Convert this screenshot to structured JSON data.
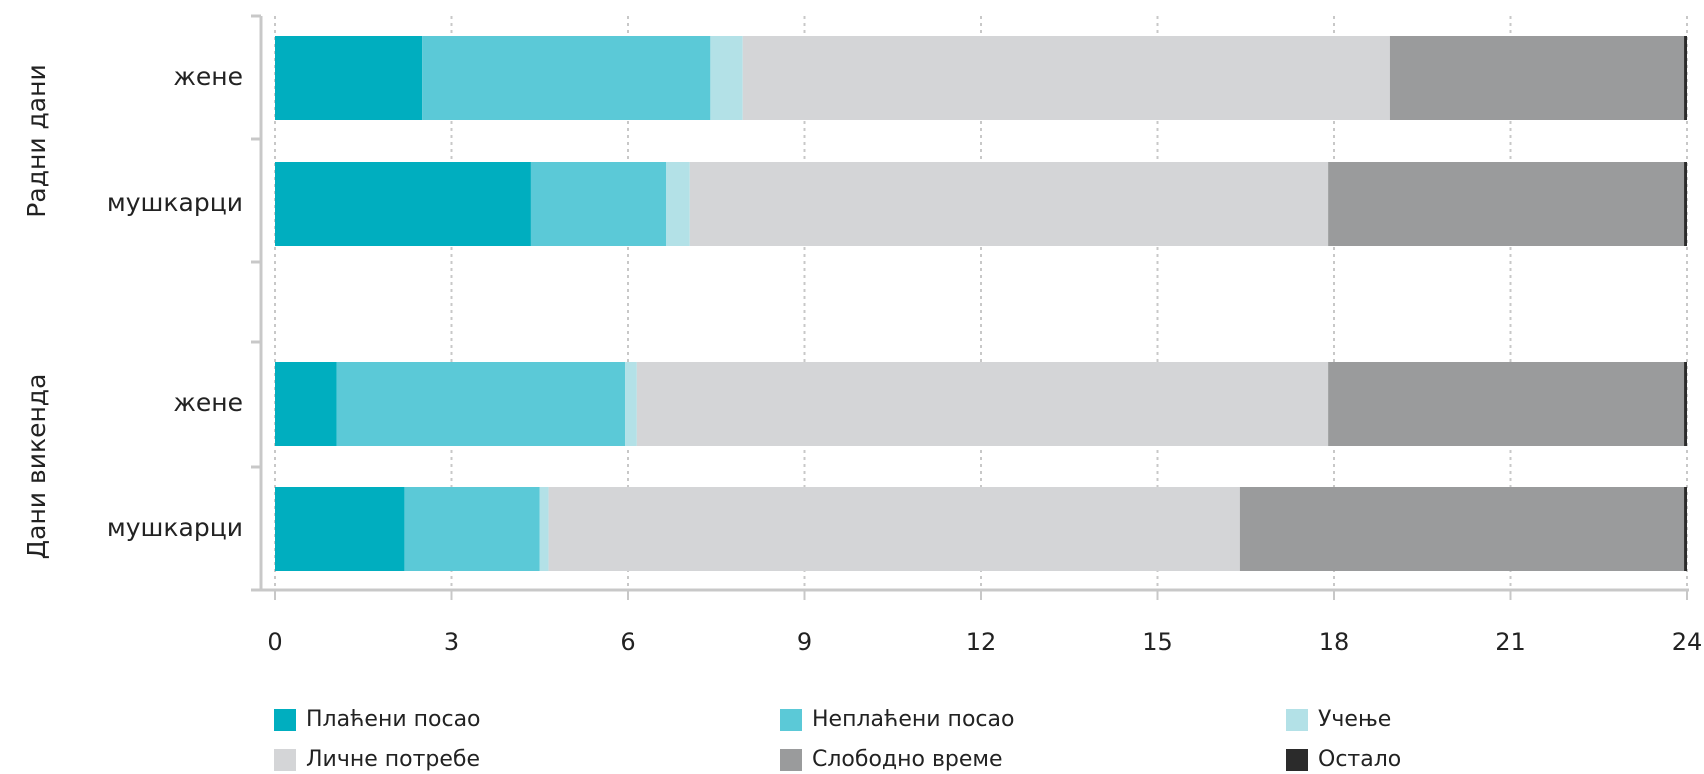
{
  "chart_data": {
    "type": "stacked-bar-horizontal",
    "groups": [
      "Радни дани",
      "Дани викенда"
    ],
    "categories": [
      "жене",
      "мушкарци",
      "жене",
      "мушкарци"
    ],
    "series": [
      {
        "name": "Плаћени посао",
        "color": "#00aebf",
        "values": [
          2.5,
          4.35,
          1.05,
          2.2
        ]
      },
      {
        "name": "Неплаћени посао",
        "color": "#5bc9d7",
        "values": [
          4.9,
          2.3,
          4.9,
          2.3
        ]
      },
      {
        "name": "Учење",
        "color": "#b3e1e7",
        "values": [
          0.55,
          0.4,
          0.2,
          0.15
        ]
      },
      {
        "name": "Личне потребе",
        "color": "#d4d5d7",
        "values": [
          11.0,
          10.85,
          11.75,
          11.75
        ]
      },
      {
        "name": "Слободно време",
        "color": "#9a9b9c",
        "values": [
          5.0,
          6.05,
          6.05,
          7.55
        ]
      },
      {
        "name": "Остало",
        "color": "#2b2b2b",
        "values": [
          0.05,
          0.05,
          0.05,
          0.05
        ]
      }
    ],
    "xlim": [
      0,
      24
    ],
    "xticks": [
      0,
      3,
      6,
      9,
      12,
      15,
      18,
      21,
      24
    ],
    "grid": true
  }
}
